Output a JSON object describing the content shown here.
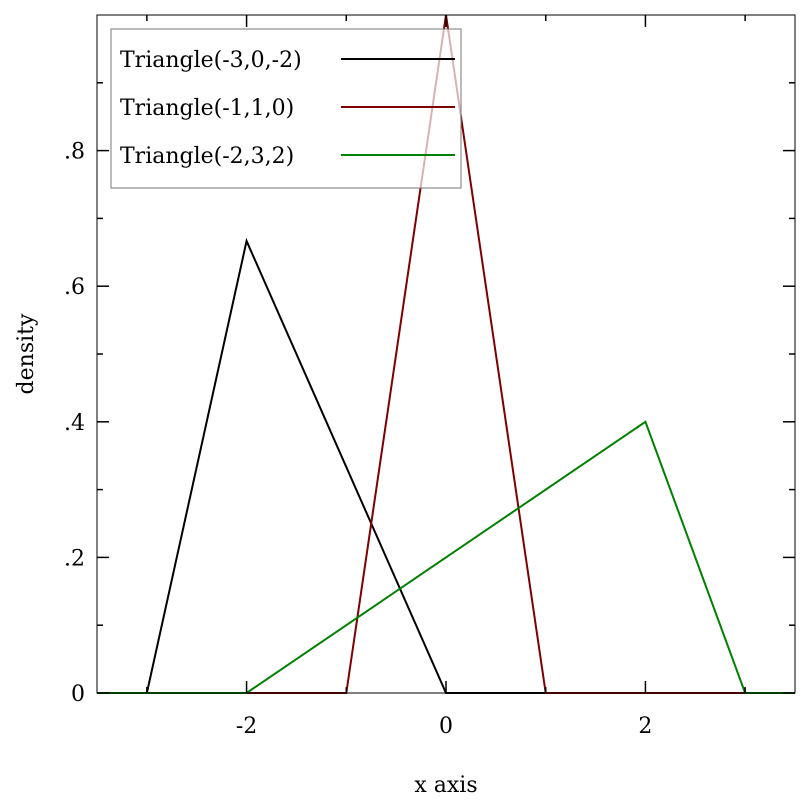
{
  "chart_data": {
    "type": "line",
    "title": "",
    "xlabel": "x axis",
    "ylabel": "density",
    "xlim": [
      -3.5,
      3.5
    ],
    "ylim": [
      0,
      1.0
    ],
    "x_ticks": [
      {
        "value": -2,
        "label": "-2"
      },
      {
        "value": 0,
        "label": "0"
      },
      {
        "value": 2,
        "label": "2"
      }
    ],
    "y_ticks": [
      {
        "value": 0,
        "label": "0"
      },
      {
        "value": 0.2,
        "label": ".2"
      },
      {
        "value": 0.4,
        "label": ".4"
      },
      {
        "value": 0.6,
        "label": ".6"
      },
      {
        "value": 0.8,
        "label": ".8"
      }
    ],
    "grid": false,
    "legend_position": "top-left",
    "series": [
      {
        "name": "Triangle(-3,0,-2)",
        "color": "#000000",
        "points": [
          [
            -3.5,
            0
          ],
          [
            -3,
            0
          ],
          [
            -2,
            0.6667
          ],
          [
            0,
            0
          ],
          [
            1,
            0
          ]
        ]
      },
      {
        "name": "Triangle(-1,1,0)",
        "color": "#7f0000",
        "points": [
          [
            -2,
            0
          ],
          [
            -1,
            0
          ],
          [
            0,
            1.0
          ],
          [
            1,
            0
          ],
          [
            3,
            0
          ]
        ]
      },
      {
        "name": "Triangle(-2,3,2)",
        "color": "#008000",
        "points": [
          [
            -3.5,
            0
          ],
          [
            -2,
            0
          ],
          [
            2,
            0.4
          ],
          [
            3,
            0
          ],
          [
            3.5,
            0
          ]
        ]
      }
    ]
  }
}
